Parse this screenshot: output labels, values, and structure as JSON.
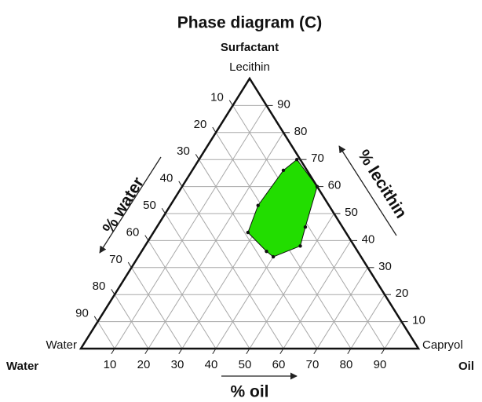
{
  "chart_data": {
    "type": "ternary",
    "title": "Phase diagram (C)",
    "apex_top": {
      "component": "Surfactant",
      "label": "Lecithin"
    },
    "apex_left": {
      "component": "Water",
      "label": "Water"
    },
    "apex_right": {
      "component": "Oil",
      "label": "Capryol"
    },
    "axes": {
      "water": {
        "title": "% water",
        "ticks": [
          10,
          20,
          30,
          40,
          50,
          60,
          70,
          80,
          90
        ]
      },
      "lecithin": {
        "title": "% lecithin",
        "ticks": [
          10,
          20,
          30,
          40,
          50,
          60,
          70,
          80,
          90
        ]
      },
      "oil": {
        "title": "% oil",
        "ticks": [
          10,
          20,
          30,
          40,
          50,
          60,
          70,
          80,
          90
        ]
      }
    },
    "grid": true,
    "region": {
      "color": "#22dd00",
      "lecithin": [
        70,
        60,
        45,
        38,
        34,
        36,
        43,
        53,
        66
      ],
      "oil": [
        29,
        40,
        44,
        46,
        40,
        37,
        28,
        26,
        27
      ]
    }
  }
}
